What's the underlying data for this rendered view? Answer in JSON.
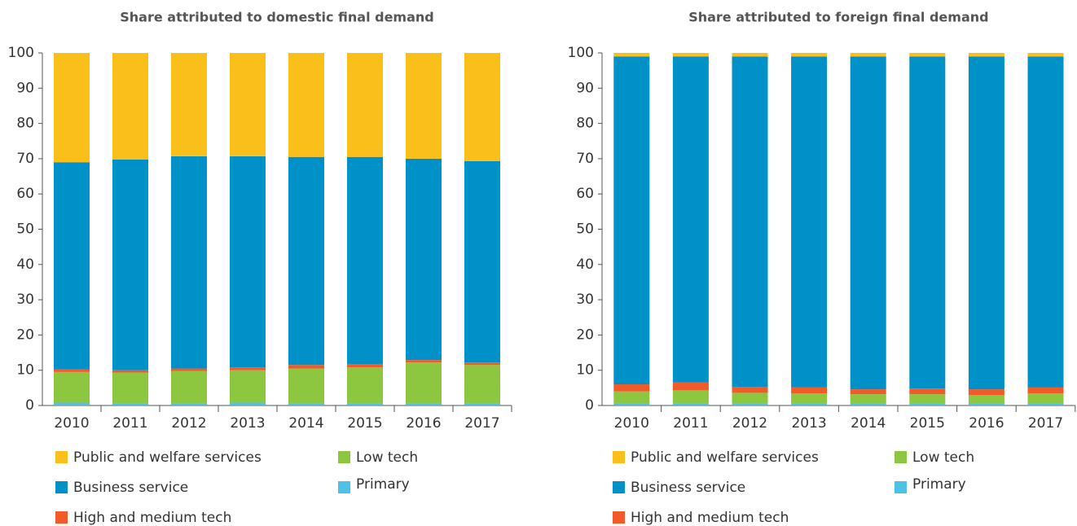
{
  "chart_data": [
    {
      "type": "stacked_bar",
      "title": "Share attributed to domestic final demand",
      "categories": [
        "2010",
        "2011",
        "2012",
        "2013",
        "2014",
        "2015",
        "2016",
        "2017"
      ],
      "ylim": [
        0,
        100
      ],
      "yticks": [
        0,
        10,
        20,
        30,
        40,
        50,
        60,
        70,
        80,
        90,
        100
      ],
      "series": [
        {
          "name": "Public and welfare services",
          "color": "#fbbf1c",
          "values": [
            31,
            30.2,
            29.3,
            29.3,
            29.5,
            29.5,
            30,
            30.7
          ]
        },
        {
          "name": "Business service",
          "color": "#0091c8",
          "values": [
            58.8,
            59.8,
            60.2,
            59.9,
            59,
            58.8,
            57.1,
            57.1
          ]
        },
        {
          "name": "High and medium tech",
          "color": "#f15a29",
          "values": [
            0.7,
            0.7,
            0.7,
            0.8,
            1.0,
            0.9,
            0.7,
            0.7
          ]
        },
        {
          "name": "Low tech",
          "color": "#8dc63f",
          "values": [
            8.7,
            8.7,
            9.2,
            9.2,
            9.9,
            10.2,
            11.6,
            10.9
          ]
        },
        {
          "name": "Primary",
          "color": "#4cc3e6",
          "values": [
            0.8,
            0.6,
            0.6,
            0.8,
            0.6,
            0.6,
            0.6,
            0.6
          ]
        }
      ]
    },
    {
      "type": "stacked_bar",
      "title": "Share attributed to foreign final demand",
      "categories": [
        "2010",
        "2011",
        "2012",
        "2013",
        "2014",
        "2015",
        "2016",
        "2017"
      ],
      "ylim": [
        0,
        100
      ],
      "yticks": [
        0,
        10,
        20,
        30,
        40,
        50,
        60,
        70,
        80,
        90,
        100
      ],
      "series": [
        {
          "name": "Public and welfare services",
          "color": "#fbbf1c",
          "values": [
            1,
            1,
            1,
            1,
            1,
            1,
            1,
            1
          ]
        },
        {
          "name": "Business service",
          "color": "#0091c8",
          "values": [
            93,
            92.5,
            93.7,
            93.8,
            94.4,
            94.2,
            94.4,
            93.9
          ]
        },
        {
          "name": "High and medium tech",
          "color": "#f15a29",
          "values": [
            2.0,
            2.2,
            1.7,
            1.8,
            1.4,
            1.6,
            1.6,
            1.7
          ]
        },
        {
          "name": "Low tech",
          "color": "#8dc63f",
          "values": [
            3.4,
            3.7,
            3.0,
            2.8,
            2.6,
            2.6,
            2.4,
            2.8
          ]
        },
        {
          "name": "Primary",
          "color": "#4cc3e6",
          "values": [
            0.6,
            0.6,
            0.6,
            0.6,
            0.6,
            0.6,
            0.6,
            0.6
          ]
        }
      ]
    }
  ]
}
